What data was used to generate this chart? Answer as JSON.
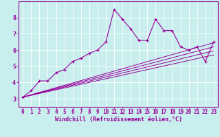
{
  "title": "",
  "xlabel": "Windchill (Refroidissement éolien,°C)",
  "ylabel": "",
  "bg_color": "#c8eeee",
  "grid_color": "#aadddd",
  "line_color": "#990099",
  "spine_color": "#990099",
  "xlim": [
    -0.5,
    23.5
  ],
  "ylim": [
    2.5,
    9.0
  ],
  "xticks": [
    0,
    1,
    2,
    3,
    4,
    5,
    6,
    7,
    8,
    9,
    10,
    11,
    12,
    13,
    14,
    15,
    16,
    17,
    18,
    19,
    20,
    21,
    22,
    23
  ],
  "yticks": [
    3,
    4,
    5,
    6,
    7,
    8
  ],
  "main_data_x": [
    0,
    1,
    2,
    3,
    4,
    5,
    6,
    7,
    8,
    9,
    10,
    11,
    12,
    13,
    14,
    15,
    16,
    17,
    18,
    19,
    20,
    21,
    22,
    23
  ],
  "main_data_y": [
    3.1,
    3.5,
    4.1,
    4.1,
    4.6,
    4.8,
    5.3,
    5.5,
    5.8,
    6.0,
    6.5,
    8.5,
    7.9,
    7.3,
    6.6,
    6.6,
    7.9,
    7.2,
    7.2,
    6.2,
    6.0,
    6.2,
    5.3,
    6.5
  ],
  "reg_lines": [
    [
      [
        0,
        23
      ],
      [
        3.1,
        5.7
      ]
    ],
    [
      [
        0,
        23
      ],
      [
        3.1,
        5.95
      ]
    ],
    [
      [
        0,
        23
      ],
      [
        3.1,
        6.2
      ]
    ],
    [
      [
        0,
        23
      ],
      [
        3.1,
        6.45
      ]
    ]
  ],
  "xlabel_fontsize": 6,
  "tick_fontsize": 5.5
}
